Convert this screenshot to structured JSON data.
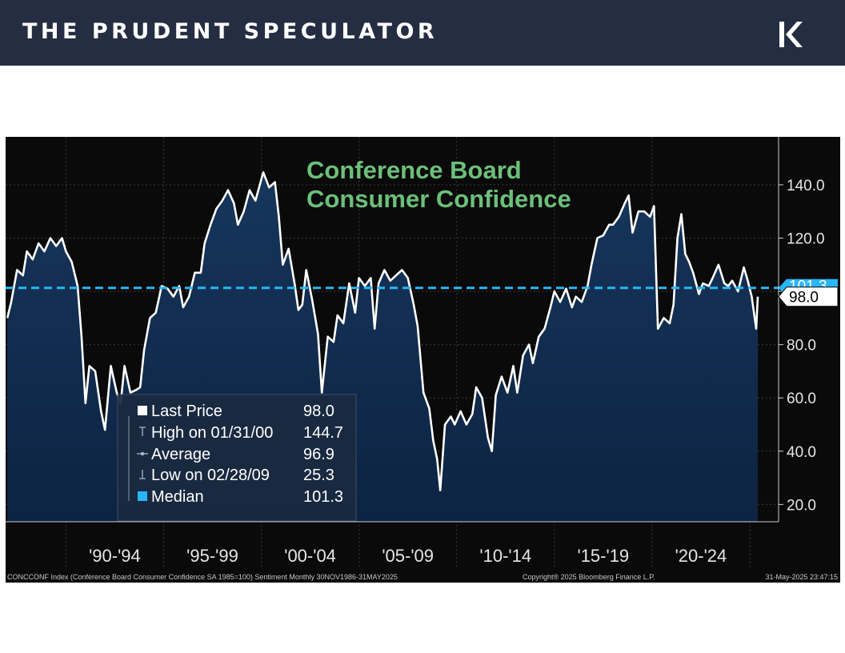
{
  "header": {
    "brand_name": "THE PRUDENT SPECULATOR",
    "logo_icon": "pk-monogram-logo"
  },
  "colors": {
    "banner": "#242d42",
    "plot_background": "#0a0a0a",
    "area_fill_top": "#16365c",
    "area_fill_bottom": "#0d2342",
    "line": "#ffffff",
    "median_line": "#29b6f6",
    "title": "#6cc07a"
  },
  "chart_data": {
    "type": "area",
    "title_lines": [
      "Conference Board",
      "Consumer Confidence"
    ],
    "x_range": [
      "1986-11-30",
      "2025-05-31"
    ],
    "ylim": [
      13.5,
      158
    ],
    "y_ticks": [
      20,
      40,
      60,
      80,
      100,
      120,
      140
    ],
    "y_tick_labels": [
      "20.0",
      "40.0",
      "60.0",
      "80.0",
      "100.0",
      "120.0",
      "140.0"
    ],
    "period_labels": [
      {
        "label": "'90-'94",
        "start": 1990,
        "end": 1995
      },
      {
        "label": "'95-'99",
        "start": 1995,
        "end": 2000
      },
      {
        "label": "'00-'04",
        "start": 2000,
        "end": 2005
      },
      {
        "label": "'05-'09",
        "start": 2005,
        "end": 2010
      },
      {
        "label": "'10-'14",
        "start": 2010,
        "end": 2015
      },
      {
        "label": "'15-'19",
        "start": 2015,
        "end": 2020
      },
      {
        "label": "'20-'24",
        "start": 2020,
        "end": 2025
      }
    ],
    "grid": true,
    "series": [
      {
        "name": "CONCCONF Index",
        "x_unit": "decimal year",
        "points": [
          [
            1987.0,
            90
          ],
          [
            1987.2,
            96
          ],
          [
            1987.5,
            108
          ],
          [
            1987.8,
            106
          ],
          [
            1988.0,
            115
          ],
          [
            1988.3,
            112
          ],
          [
            1988.6,
            118
          ],
          [
            1988.9,
            115
          ],
          [
            1989.2,
            120
          ],
          [
            1989.5,
            117
          ],
          [
            1989.8,
            120
          ],
          [
            1990.0,
            115
          ],
          [
            1990.3,
            111
          ],
          [
            1990.6,
            102
          ],
          [
            1990.8,
            83
          ],
          [
            1991.0,
            58
          ],
          [
            1991.2,
            72
          ],
          [
            1991.5,
            70
          ],
          [
            1991.8,
            55
          ],
          [
            1992.0,
            48
          ],
          [
            1992.3,
            72
          ],
          [
            1992.6,
            62
          ],
          [
            1992.8,
            58
          ],
          [
            1993.0,
            72
          ],
          [
            1993.3,
            62
          ],
          [
            1993.6,
            63
          ],
          [
            1993.8,
            64
          ],
          [
            1994.0,
            78
          ],
          [
            1994.3,
            90
          ],
          [
            1994.6,
            92
          ],
          [
            1994.9,
            102
          ],
          [
            1995.2,
            101
          ],
          [
            1995.5,
            98
          ],
          [
            1995.8,
            102
          ],
          [
            1996.0,
            94
          ],
          [
            1996.3,
            98
          ],
          [
            1996.6,
            107
          ],
          [
            1996.9,
            107
          ],
          [
            1997.1,
            118
          ],
          [
            1997.4,
            125
          ],
          [
            1997.7,
            131
          ],
          [
            1998.0,
            134
          ],
          [
            1998.3,
            138
          ],
          [
            1998.6,
            133
          ],
          [
            1998.8,
            125
          ],
          [
            1999.1,
            130
          ],
          [
            1999.4,
            138
          ],
          [
            1999.7,
            134
          ],
          [
            2000.1,
            144.7
          ],
          [
            2000.4,
            139
          ],
          [
            2000.7,
            141
          ],
          [
            2000.9,
            128
          ],
          [
            2001.1,
            110
          ],
          [
            2001.4,
            116
          ],
          [
            2001.7,
            103
          ],
          [
            2001.9,
            93
          ],
          [
            2002.1,
            95
          ],
          [
            2002.3,
            108
          ],
          [
            2002.6,
            97
          ],
          [
            2002.9,
            84
          ],
          [
            2003.1,
            62
          ],
          [
            2003.4,
            83
          ],
          [
            2003.7,
            81
          ],
          [
            2003.9,
            91
          ],
          [
            2004.2,
            88
          ],
          [
            2004.5,
            103
          ],
          [
            2004.8,
            92
          ],
          [
            2005.0,
            105
          ],
          [
            2005.3,
            102
          ],
          [
            2005.6,
            105
          ],
          [
            2005.8,
            86
          ],
          [
            2006.0,
            103
          ],
          [
            2006.3,
            108
          ],
          [
            2006.6,
            104
          ],
          [
            2006.9,
            106
          ],
          [
            2007.2,
            108
          ],
          [
            2007.5,
            105
          ],
          [
            2007.8,
            95
          ],
          [
            2008.0,
            87
          ],
          [
            2008.3,
            62
          ],
          [
            2008.6,
            56
          ],
          [
            2008.8,
            44
          ],
          [
            2009.0,
            37
          ],
          [
            2009.16,
            25.3
          ],
          [
            2009.4,
            50
          ],
          [
            2009.7,
            53
          ],
          [
            2009.9,
            50
          ],
          [
            2010.2,
            55
          ],
          [
            2010.5,
            50
          ],
          [
            2010.8,
            54
          ],
          [
            2011.0,
            64
          ],
          [
            2011.3,
            60
          ],
          [
            2011.6,
            45
          ],
          [
            2011.8,
            40
          ],
          [
            2012.0,
            61
          ],
          [
            2012.3,
            68
          ],
          [
            2012.6,
            62
          ],
          [
            2012.9,
            72
          ],
          [
            2013.1,
            62
          ],
          [
            2013.4,
            76
          ],
          [
            2013.7,
            80
          ],
          [
            2013.9,
            73
          ],
          [
            2014.2,
            83
          ],
          [
            2014.5,
            86
          ],
          [
            2014.8,
            94
          ],
          [
            2015.0,
            100
          ],
          [
            2015.3,
            96
          ],
          [
            2015.6,
            101
          ],
          [
            2015.9,
            94
          ],
          [
            2016.1,
            98
          ],
          [
            2016.4,
            96
          ],
          [
            2016.7,
            102
          ],
          [
            2016.9,
            110
          ],
          [
            2017.2,
            120
          ],
          [
            2017.5,
            121
          ],
          [
            2017.8,
            125
          ],
          [
            2018.0,
            125
          ],
          [
            2018.3,
            128
          ],
          [
            2018.6,
            133
          ],
          [
            2018.8,
            136
          ],
          [
            2019.0,
            122
          ],
          [
            2019.3,
            130
          ],
          [
            2019.6,
            130
          ],
          [
            2019.9,
            128
          ],
          [
            2020.1,
            132
          ],
          [
            2020.3,
            86
          ],
          [
            2020.6,
            90
          ],
          [
            2020.9,
            88
          ],
          [
            2021.1,
            95
          ],
          [
            2021.3,
            120
          ],
          [
            2021.5,
            129
          ],
          [
            2021.7,
            114
          ],
          [
            2021.9,
            111
          ],
          [
            2022.1,
            107
          ],
          [
            2022.4,
            99
          ],
          [
            2022.6,
            103
          ],
          [
            2022.9,
            102
          ],
          [
            2023.1,
            105
          ],
          [
            2023.4,
            110
          ],
          [
            2023.7,
            103
          ],
          [
            2023.9,
            102
          ],
          [
            2024.1,
            104
          ],
          [
            2024.4,
            100
          ],
          [
            2024.7,
            109
          ],
          [
            2024.9,
            104
          ],
          [
            2025.1,
            98
          ],
          [
            2025.33,
            86
          ],
          [
            2025.41,
            98
          ]
        ]
      }
    ],
    "median_value": 101.3,
    "median_label": "101.3",
    "last_value_label": "98.0",
    "legend": {
      "placement": "bottom-left",
      "items": [
        {
          "marker": "square",
          "label": "Last Price",
          "value": "98.0"
        },
        {
          "marker": "high",
          "label": "High on 01/31/00",
          "value": "144.7"
        },
        {
          "marker": "average",
          "label": "Average",
          "value": "96.9"
        },
        {
          "marker": "low",
          "label": "Low on 02/28/09",
          "value": "25.3"
        },
        {
          "marker": "median-square",
          "label": "Median",
          "value": "101.3"
        }
      ]
    },
    "footer": {
      "source": "CONCCONF Index (Conference Board Consumer Confidence SA 1985=100) Sentiment  Monthly 30NOV1986-31MAY2025",
      "copyright": "Copyright® 2025 Bloomberg Finance L.P.",
      "timestamp": "31-May-2025 23:47:15"
    }
  }
}
